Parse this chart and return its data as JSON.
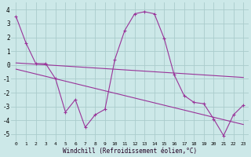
{
  "xlabel": "Windchill (Refroidissement éolien,°C)",
  "bg_color": "#cce8e8",
  "line_color": "#993399",
  "grid_color": "#aacccc",
  "xlim": [
    -0.5,
    23.5
  ],
  "ylim": [
    -5.5,
    4.5
  ],
  "xticks": [
    0,
    1,
    2,
    3,
    4,
    5,
    6,
    7,
    8,
    9,
    10,
    11,
    12,
    13,
    14,
    15,
    16,
    17,
    18,
    19,
    20,
    21,
    22,
    23
  ],
  "yticks": [
    -5,
    -4,
    -3,
    -2,
    -1,
    0,
    1,
    2,
    3,
    4
  ],
  "curve1_x": [
    0,
    1,
    2,
    3,
    4,
    5,
    6,
    7,
    8,
    9,
    10,
    11,
    12,
    13,
    14,
    15,
    16,
    17,
    18,
    19,
    20,
    21,
    22,
    23
  ],
  "curve1_y": [
    3.5,
    1.6,
    0.1,
    0.1,
    -1.0,
    -3.4,
    -2.5,
    -4.5,
    -3.6,
    -3.2,
    0.4,
    2.5,
    3.7,
    3.85,
    3.7,
    1.9,
    -0.7,
    -2.2,
    -2.7,
    -2.8,
    -3.9,
    -5.1,
    -3.6,
    -2.9
  ],
  "curve2_x": [
    0,
    23
  ],
  "curve2_y": [
    0.15,
    -0.9
  ],
  "curve3_x": [
    0,
    23
  ],
  "curve3_y": [
    -0.3,
    -4.3
  ]
}
